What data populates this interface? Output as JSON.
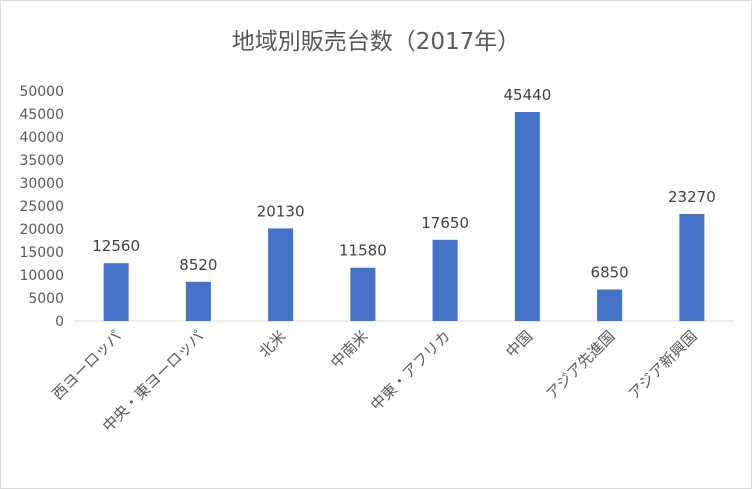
{
  "chart_data": {
    "type": "bar",
    "title": "地域別販売台数（2017年）",
    "categories": [
      "西ヨーロッパ",
      "中央・東ヨーロッパ",
      "北米",
      "中南米",
      "中東・アフリカ",
      "中国",
      "アジア先進国",
      "アジア新興国"
    ],
    "values": [
      12560,
      8520,
      20130,
      11580,
      17650,
      45440,
      6850,
      23270
    ],
    "y_ticks": [
      "0",
      "5000",
      "10000",
      "15000",
      "20000",
      "25000",
      "30000",
      "35000",
      "40000",
      "45000",
      "50000"
    ],
    "ylim": [
      0,
      50000
    ],
    "xlabel": "",
    "ylabel": "",
    "grid": false,
    "legend": "none",
    "bar_color": "#4472c4"
  }
}
